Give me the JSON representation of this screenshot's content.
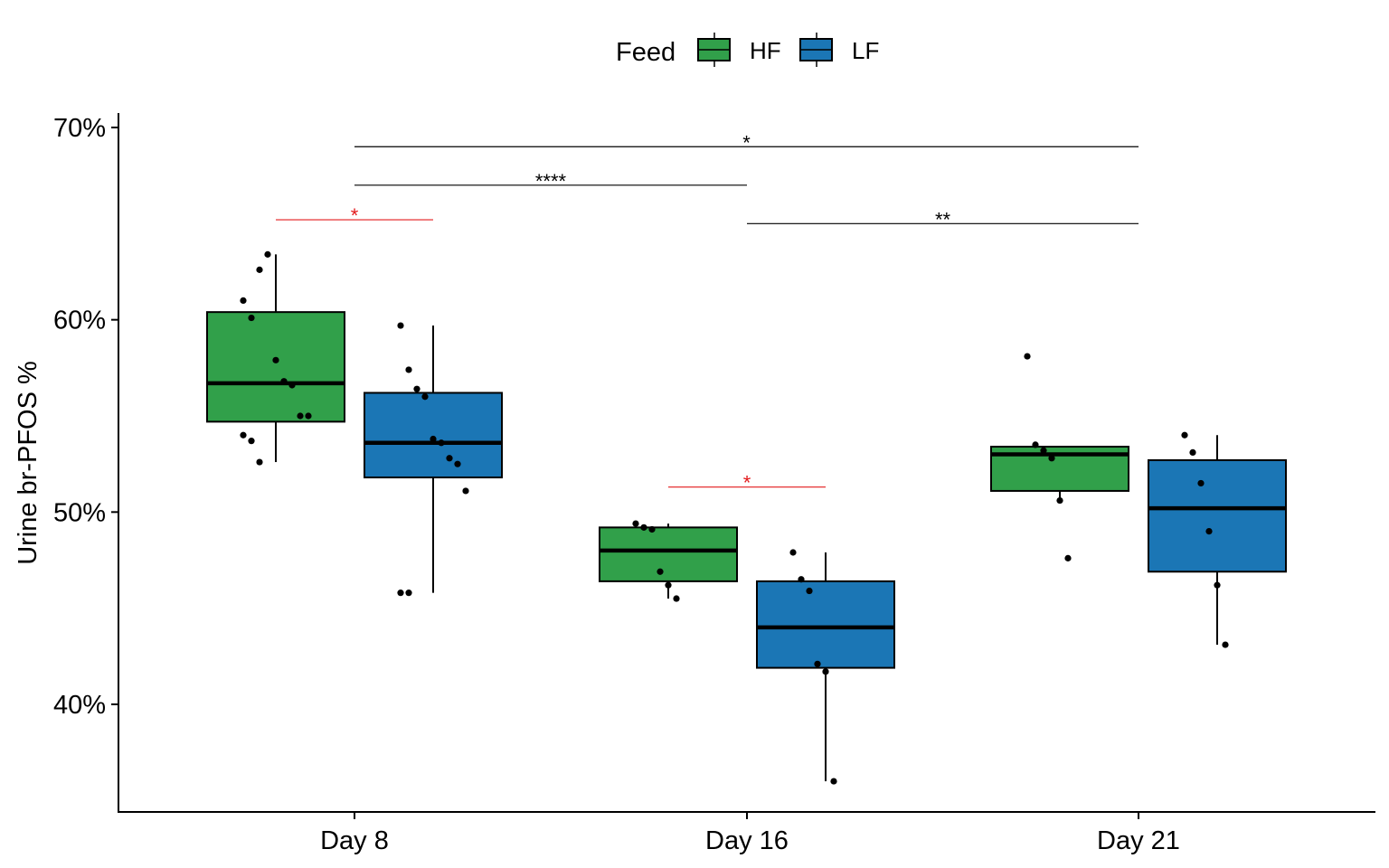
{
  "chart_data": {
    "type": "boxplot",
    "title": "",
    "xlabel": "",
    "ylabel": "Urine br-PFOS %",
    "ylim": [
      34.5,
      70.8
    ],
    "y_ticks": [
      40,
      50,
      60,
      70
    ],
    "y_tick_labels": [
      "40%",
      "50%",
      "60%",
      "70%"
    ],
    "categories": [
      "Day 8",
      "Day 16",
      "Day 21"
    ],
    "legend": {
      "title": "Feed",
      "position": "top",
      "entries": [
        "HF",
        "LF"
      ]
    },
    "series": [
      {
        "name": "HF",
        "color": "#31a04a",
        "boxes": [
          {
            "category": "Day 8",
            "min": 52.6,
            "q1": 54.7,
            "median": 56.7,
            "q3": 60.4,
            "max": 63.4
          },
          {
            "category": "Day 16",
            "min": 45.5,
            "q1": 46.4,
            "median": 48.0,
            "q3": 49.2,
            "max": 49.4
          },
          {
            "category": "Day 21",
            "min": 50.6,
            "q1": 51.1,
            "median": 53.0,
            "q3": 53.4,
            "max": 53.4
          }
        ],
        "points": [
          {
            "category": "Day 8",
            "values": [
              61.0,
              60.1,
              62.6,
              63.4,
              57.9,
              56.8,
              56.6,
              55.0,
              55.0,
              54.0,
              53.7,
              52.6
            ]
          },
          {
            "category": "Day 16",
            "values": [
              49.4,
              49.2,
              49.1,
              46.9,
              46.2,
              45.5
            ]
          },
          {
            "category": "Day 21",
            "values": [
              58.1,
              53.5,
              53.2,
              52.8,
              50.6,
              47.6
            ]
          }
        ]
      },
      {
        "name": "LF",
        "color": "#1b76b5",
        "boxes": [
          {
            "category": "Day 8",
            "min": 45.8,
            "q1": 51.8,
            "median": 53.6,
            "q3": 56.2,
            "max": 59.7
          },
          {
            "category": "Day 16",
            "min": 36.0,
            "q1": 41.9,
            "median": 44.0,
            "q3": 46.4,
            "max": 47.9
          },
          {
            "category": "Day 21",
            "min": 43.1,
            "q1": 46.9,
            "median": 50.2,
            "q3": 52.7,
            "max": 54.0
          }
        ],
        "points": [
          {
            "category": "Day 8",
            "values": [
              59.7,
              57.4,
              56.4,
              56.0,
              53.8,
              53.6,
              52.8,
              52.5,
              51.1,
              45.8,
              45.8
            ]
          },
          {
            "category": "Day 16",
            "values": [
              47.9,
              46.5,
              45.9,
              42.1,
              41.7,
              36.0
            ]
          },
          {
            "category": "Day 21",
            "values": [
              54.0,
              53.1,
              51.5,
              49.0,
              46.2,
              43.1
            ]
          }
        ]
      }
    ],
    "comparisons": [
      {
        "from": "Day 8 HF",
        "to": "Day 8 LF",
        "y": 65.2,
        "label": "*",
        "color": "#e31a1c"
      },
      {
        "from": "Day 16 HF",
        "to": "Day 16 LF",
        "y": 51.3,
        "label": "*",
        "color": "#e31a1c"
      },
      {
        "from": "Day 8",
        "to": "Day 16",
        "y": 67.0,
        "label": "****",
        "color": "#000000"
      },
      {
        "from": "Day 16",
        "to": "Day 21",
        "y": 65.0,
        "label": "**",
        "color": "#000000"
      },
      {
        "from": "Day 8",
        "to": "Day 21",
        "y": 69.0,
        "label": "*",
        "color": "#000000"
      }
    ],
    "grid": false
  }
}
